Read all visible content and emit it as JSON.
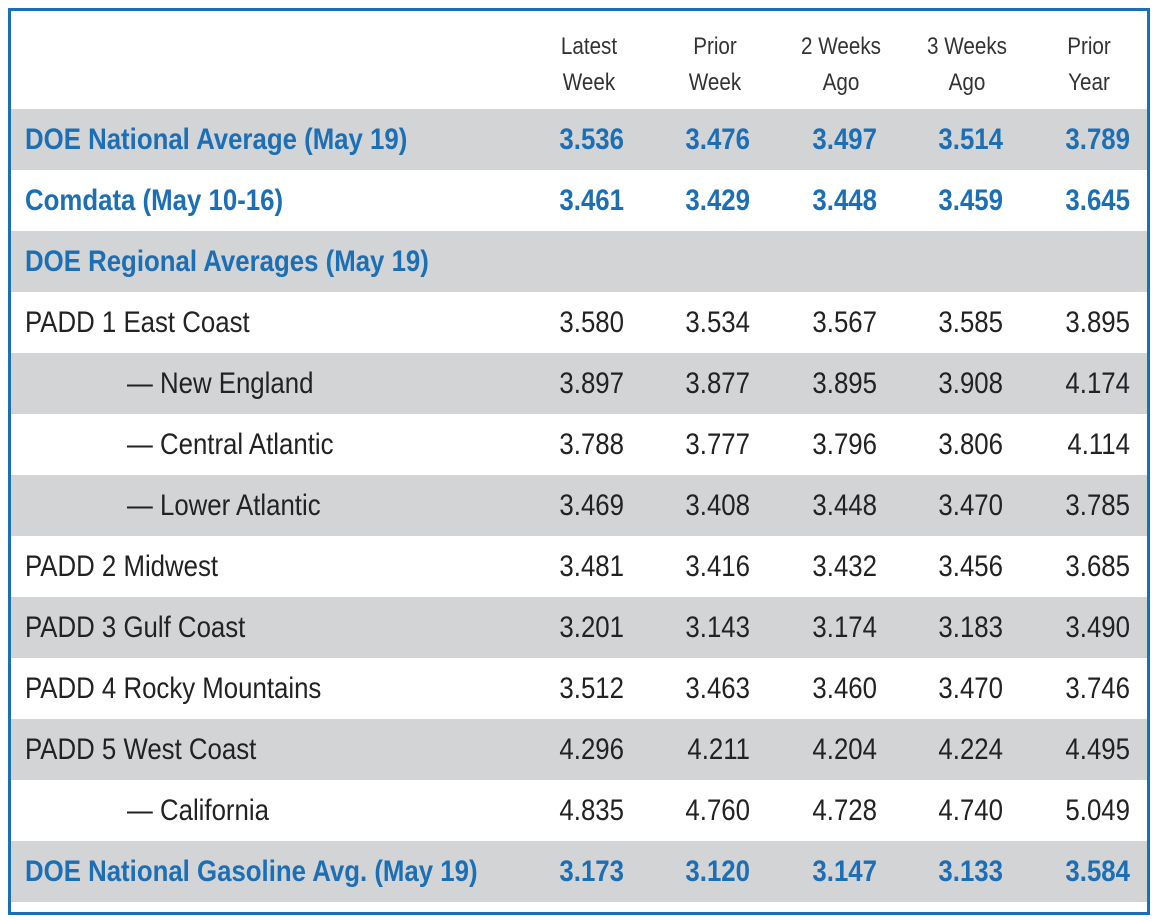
{
  "columns": [
    "Latest\nWeek",
    "Prior\nWeek",
    "2 Weeks\nAgo",
    "3 Weeks\nAgo",
    "Prior\nYear"
  ],
  "rows": [
    {
      "label": "DOE National Average (May 19)",
      "values": [
        "3.536",
        "3.476",
        "3.497",
        "3.514",
        "3.789"
      ]
    },
    {
      "label": "Comdata (May 10-16)",
      "values": [
        "3.461",
        "3.429",
        "3.448",
        "3.459",
        "3.645"
      ]
    },
    {
      "label": "DOE Regional Averages (May 19)",
      "values": [
        "",
        "",
        "",
        "",
        ""
      ]
    },
    {
      "label": "PADD 1 East Coast",
      "values": [
        "3.580",
        "3.534",
        "3.567",
        "3.585",
        "3.895"
      ]
    },
    {
      "label": "— New England",
      "values": [
        "3.897",
        "3.877",
        "3.895",
        "3.908",
        "4.174"
      ]
    },
    {
      "label": "— Central Atlantic",
      "values": [
        "3.788",
        "3.777",
        "3.796",
        "3.806",
        "4.114"
      ]
    },
    {
      "label": "— Lower Atlantic",
      "values": [
        "3.469",
        "3.408",
        "3.448",
        "3.470",
        "3.785"
      ]
    },
    {
      "label": "PADD 2 Midwest",
      "values": [
        "3.481",
        "3.416",
        "3.432",
        "3.456",
        "3.685"
      ]
    },
    {
      "label": "PADD 3 Gulf Coast",
      "values": [
        "3.201",
        "3.143",
        "3.174",
        "3.183",
        "3.490"
      ]
    },
    {
      "label": "PADD 4 Rocky Mountains",
      "values": [
        "3.512",
        "3.463",
        "3.460",
        "3.470",
        "3.746"
      ]
    },
    {
      "label": "PADD 5 West Coast",
      "values": [
        "4.296",
        "4.211",
        "4.204",
        "4.224",
        "4.495"
      ]
    },
    {
      "label": "— California",
      "values": [
        "4.835",
        "4.760",
        "4.728",
        "4.740",
        "5.049"
      ]
    },
    {
      "label": "DOE National Gasoline Avg. (May 19)",
      "values": [
        "3.173",
        "3.120",
        "3.147",
        "3.133",
        "3.584"
      ]
    }
  ],
  "colors": {
    "accent": "#1c6fb5",
    "shade": "#d3d4d6",
    "text": "#222222"
  }
}
